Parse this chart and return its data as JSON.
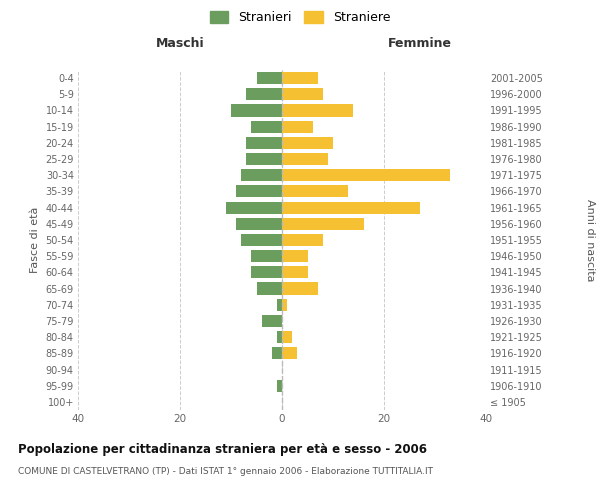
{
  "age_groups": [
    "100+",
    "95-99",
    "90-94",
    "85-89",
    "80-84",
    "75-79",
    "70-74",
    "65-69",
    "60-64",
    "55-59",
    "50-54",
    "45-49",
    "40-44",
    "35-39",
    "30-34",
    "25-29",
    "20-24",
    "15-19",
    "10-14",
    "5-9",
    "0-4"
  ],
  "birth_years": [
    "≤ 1905",
    "1906-1910",
    "1911-1915",
    "1916-1920",
    "1921-1925",
    "1926-1930",
    "1931-1935",
    "1936-1940",
    "1941-1945",
    "1946-1950",
    "1951-1955",
    "1956-1960",
    "1961-1965",
    "1966-1970",
    "1971-1975",
    "1976-1980",
    "1981-1985",
    "1986-1990",
    "1991-1995",
    "1996-2000",
    "2001-2005"
  ],
  "maschi": [
    0,
    1,
    0,
    2,
    1,
    4,
    1,
    5,
    6,
    6,
    8,
    9,
    11,
    9,
    8,
    7,
    7,
    6,
    10,
    7,
    5
  ],
  "femmine": [
    0,
    0,
    0,
    3,
    2,
    0,
    1,
    7,
    5,
    5,
    8,
    16,
    27,
    13,
    33,
    9,
    10,
    6,
    14,
    8,
    7
  ],
  "color_maschi": "#6b9e5e",
  "color_femmine": "#f5c032",
  "background_color": "#ffffff",
  "grid_color": "#cccccc",
  "title": "Popolazione per cittadinanza straniera per età e sesso - 2006",
  "subtitle": "COMUNE DI CASTELVETRANO (TP) - Dati ISTAT 1° gennaio 2006 - Elaborazione TUTTITALIA.IT",
  "xlabel_left": "Maschi",
  "xlabel_right": "Femmine",
  "ylabel_left": "Fasce di età",
  "ylabel_right": "Anni di nascita",
  "legend_maschi": "Stranieri",
  "legend_femmine": "Straniere",
  "xlim": 40
}
